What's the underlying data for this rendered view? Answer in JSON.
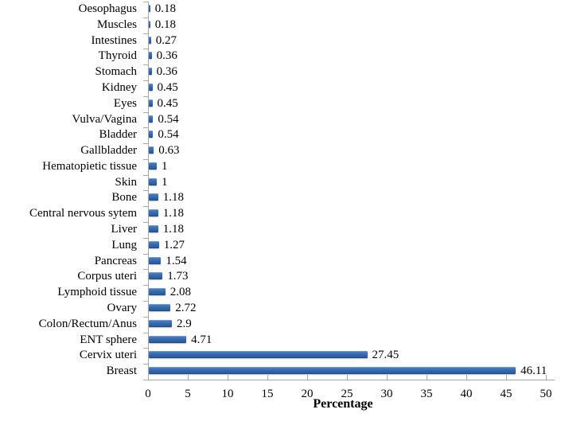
{
  "chart_data": {
    "type": "bar",
    "orientation": "horizontal",
    "title": "",
    "xlabel": "Percentage",
    "ylabel": "",
    "xlim": [
      0,
      50
    ],
    "xticks": [
      0,
      5,
      10,
      15,
      20,
      25,
      30,
      35,
      40,
      45,
      50
    ],
    "grid": false,
    "legend": false,
    "bar_value_labels_shown": true,
    "categories": [
      "Oesophagus",
      "Muscles",
      "Intestines",
      "Thyroid",
      "Stomach",
      "Kidney",
      "Eyes",
      "Vulva/Vagina",
      "Bladder",
      "Gallbladder",
      "Hematopietic tissue",
      "Skin",
      "Bone",
      "Central nervous sytem",
      "Liver",
      "Lung",
      "Pancreas",
      "Corpus uteri",
      "Lymphoid tissue",
      "Ovary",
      "Colon/Rectum/Anus",
      "ENT sphere",
      "Cervix uteri",
      "Breast"
    ],
    "values": [
      0.18,
      0.18,
      0.27,
      0.36,
      0.36,
      0.45,
      0.45,
      0.54,
      0.54,
      0.63,
      1,
      1,
      1.18,
      1.18,
      1.18,
      1.27,
      1.54,
      1.73,
      2.08,
      2.72,
      2.9,
      4.71,
      27.45,
      46.11
    ],
    "value_labels": [
      "0.18",
      "0.18",
      "0.27",
      "0.36",
      "0.36",
      "0.45",
      "0.45",
      "0.54",
      "0.54",
      "0.63",
      "1",
      "1",
      "1.18",
      "1.18",
      "1.18",
      "1.27",
      "1.54",
      "1.73",
      "2.08",
      "2.72",
      "2.9",
      "4.71",
      "27.45",
      "46.11"
    ]
  },
  "colors": {
    "bar_highlight": "#8fb2de",
    "bar_top": "#4a7cc1",
    "bar_mid": "#3568ae",
    "bar_bottom": "#2b5b9b",
    "bar_edge": "#1f4c86",
    "axis": "#a6a6a6",
    "text": "#000000",
    "background": "#ffffff"
  }
}
